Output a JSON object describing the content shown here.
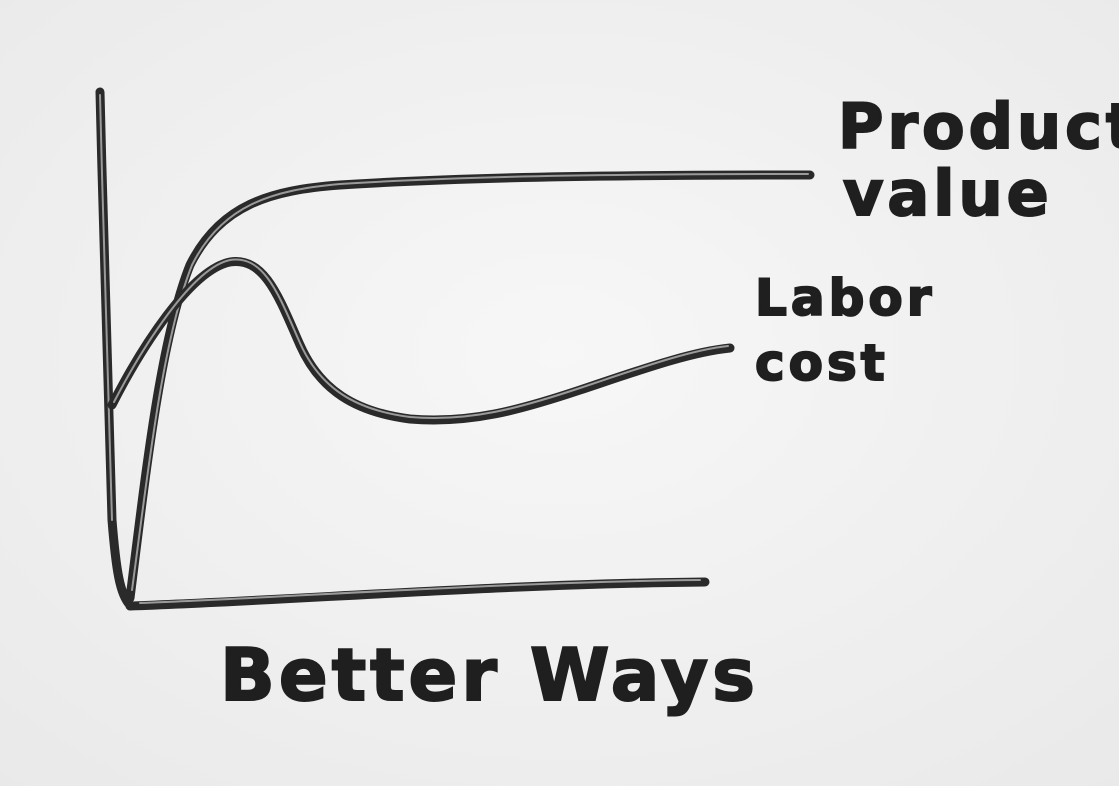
{
  "labels": {
    "product_value": [
      "Product",
      "value"
    ],
    "labor_cost": [
      "Labor",
      "cost"
    ],
    "x_axis": "Better Ways"
  }
}
